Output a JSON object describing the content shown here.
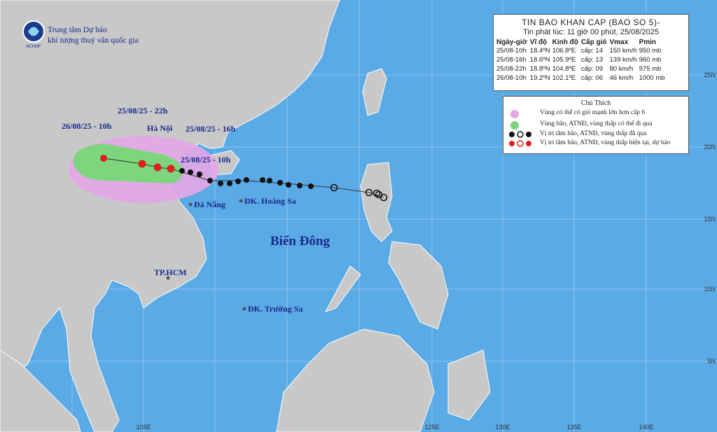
{
  "header": {
    "org_line1": "Trung tâm Dự báo",
    "org_line2": "khí tượng thuỷ văn quốc gia",
    "logo_text": "NCHMF"
  },
  "info_box": {
    "title": "TIN BAO KHAN CAP (BAO SO 5)-",
    "issued": "Tin phát lúc: 11 giờ 00 phút, 25/08/2025",
    "columns": [
      "Ngày-giờ",
      "Vĩ độ",
      "Kinh độ",
      "Cấp gió",
      "Vmax",
      "Pmin"
    ],
    "rows": [
      [
        "25/08-10h",
        "18.4ºN",
        "106.8ºE",
        "cấp: 14",
        "150 km/h",
        "950 mb"
      ],
      [
        "25/08-16h",
        "18.6ºN",
        "105.9ºE",
        "cấp: 13",
        "139 km/h",
        "960 mb"
      ],
      [
        "25/08-22h",
        "18.8ºN",
        "104.8ºE",
        "cấp: 09",
        "80 km/h",
        "975 mb"
      ],
      [
        "26/08-10h",
        "19.2ºN",
        "102.1ºE",
        "cấp: 06",
        "46 km/h",
        "1000 mb"
      ]
    ]
  },
  "legend": {
    "title": "Chú Thích",
    "items": [
      "Vùng có thể có gió mạnh lớn hơn cấp 6",
      "Vùng bão, ATNĐ, vùng thấp có thể đi qua",
      "Vị trí tâm bão, ATNĐ, vùng thấp đã qua",
      "Vị trí tâm bão, ATNĐ, vùng thấp hiện tại, dự báo"
    ]
  },
  "map": {
    "labels": {
      "hanoi": "Hà Nội",
      "t_22h": "25/08/25 - 22h",
      "t_26_10h": "26/08/25 - 10h",
      "t_16h": "25/08/25 - 16h",
      "t_10h": "25/08/25 - 10h",
      "danang": "Đà Nẵng",
      "hoangsa": "ĐK. Hoàng Sa",
      "sea": "Biển Đông",
      "hcm": "TP.HCM",
      "truongsa": "ĐK. Trường Sa"
    },
    "lon_labels": [
      "105E",
      "125E",
      "130E",
      "135E",
      "140E"
    ],
    "lat_labels": [
      "25N",
      "20N",
      "15N",
      "10N",
      "5N"
    ]
  }
}
